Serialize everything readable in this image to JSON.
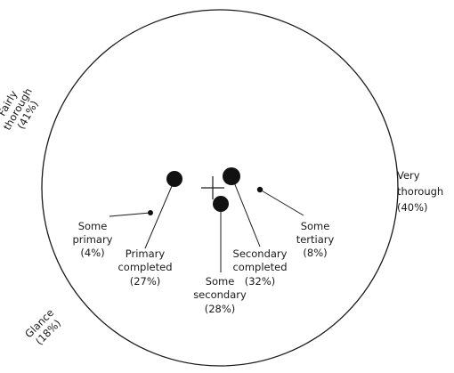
{
  "chart_data": {
    "type": "polar-correspondence-plot",
    "axes": [
      {
        "key": "fairly_thorough",
        "lines": [
          "Fairly",
          "thorough",
          "(41%)"
        ]
      },
      {
        "key": "very_thorough",
        "lines": [
          "Very",
          "thorough",
          "(40%)"
        ]
      },
      {
        "key": "glance",
        "lines": [
          "Glance",
          "(18%)"
        ]
      }
    ],
    "points": [
      {
        "key": "some_primary",
        "lines": [
          "Some",
          "primary",
          "(4%)"
        ],
        "share": 4
      },
      {
        "key": "primary_completed",
        "lines": [
          "Primary",
          "completed",
          "(27%)"
        ],
        "share": 27
      },
      {
        "key": "some_secondary",
        "lines": [
          "Some",
          "secondary",
          "(28%)"
        ],
        "share": 28
      },
      {
        "key": "secondary_completed",
        "lines": [
          "Secondary",
          "completed",
          "(32%)"
        ],
        "share": 32
      },
      {
        "key": "some_tertiary",
        "lines": [
          "Some",
          "tertiary",
          "(8%)"
        ],
        "share": 8
      }
    ]
  }
}
